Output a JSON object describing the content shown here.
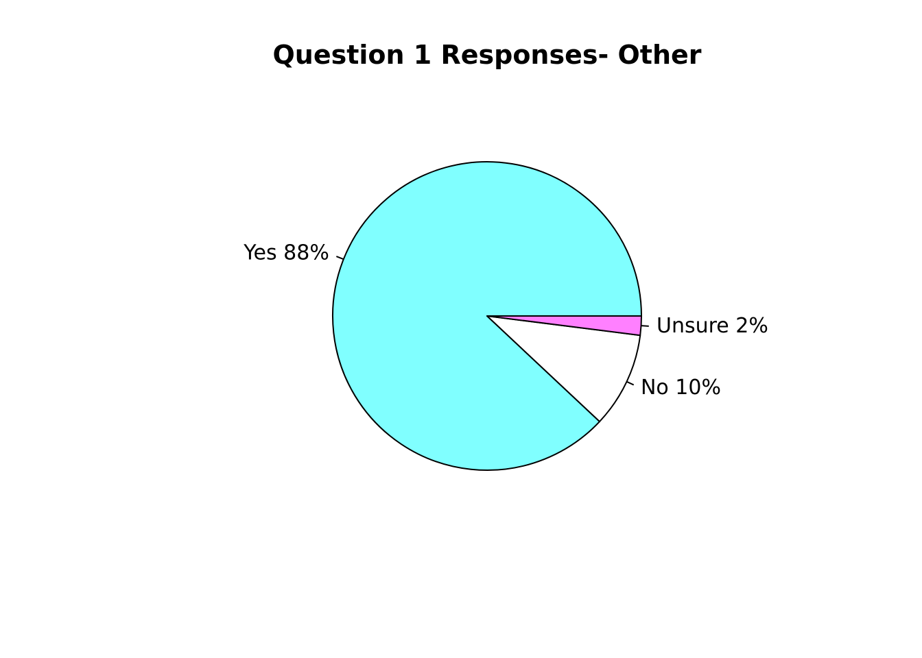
{
  "chart_data": {
    "type": "pie",
    "title": "Question 1 Responses- Other",
    "slices": [
      {
        "label": "Yes 88%",
        "value": 88,
        "color": "#80ffff"
      },
      {
        "label": "No 10%",
        "value": 10,
        "color": "#ffffff"
      },
      {
        "label": "Unsure 2%",
        "value": 2,
        "color": "#ff80ff"
      }
    ],
    "start_angle_deg": 0,
    "direction": "counterclockwise",
    "border_color": "#000000"
  }
}
